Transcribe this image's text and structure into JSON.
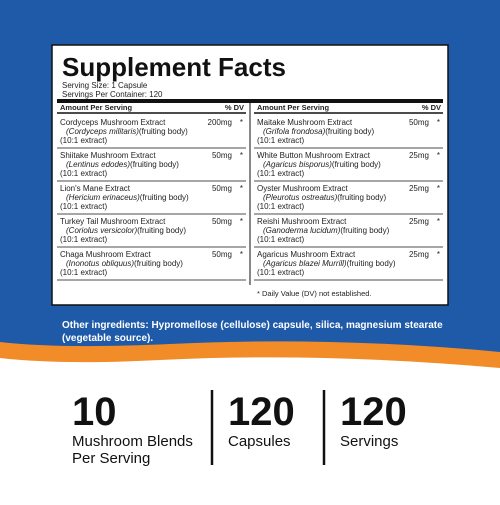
{
  "header": {
    "title": "Supplement Facts",
    "serving_size": "Serving Size: 1 Capsule",
    "servings_per_container": "Servings Per Container: 120"
  },
  "table": {
    "columns": [
      {
        "heading": "Amount Per Serving",
        "dv_heading": "% DV",
        "rows": [
          {
            "name": "Cordyceps Mushroom Extract",
            "latin": "(Cordyceps militaris)",
            "part": "(fruiting body)",
            "extract": "(10:1 extract)",
            "amount": "200mg",
            "dv": "*"
          },
          {
            "name": "Shiitake Mushroom Extract",
            "latin": "(Lentinus edodes)",
            "part": "(fruiting body)",
            "extract": "(10:1 extract)",
            "amount": "50mg",
            "dv": "*"
          },
          {
            "name": "Lion's Mane Extract",
            "latin": "(Hericium erinaceus)",
            "part": "(fruiting body)",
            "extract": "(10:1 extract)",
            "amount": "50mg",
            "dv": "*"
          },
          {
            "name": "Turkey Tail Mushroom Extract",
            "latin": "(Coriolus versicolor)",
            "part": "(fruiting body)",
            "extract": "(10:1 extract)",
            "amount": "50mg",
            "dv": "*"
          },
          {
            "name": "Chaga Mushroom Extract",
            "latin": "(Inonotus obliquus)",
            "part": "(fruiting body)",
            "extract": "(10:1 extract)",
            "amount": "50mg",
            "dv": "*"
          }
        ]
      },
      {
        "heading": "Amount Per Serving",
        "dv_heading": "% DV",
        "rows": [
          {
            "name": "Maitake Mushroom Extract",
            "latin": "(Grifola frondosa)",
            "part": "(fruiting body)",
            "extract": "(10:1 extract)",
            "amount": "50mg",
            "dv": "*"
          },
          {
            "name": "White Button Mushroom Extract",
            "latin": "(Agaricus bisporus)",
            "part": "(fruiting body)",
            "extract": "(10:1 extract)",
            "amount": "25mg",
            "dv": "*"
          },
          {
            "name": "Oyster Mushroom Extract",
            "latin": "(Pleurotus ostreatus)",
            "part": "(fruiting body)",
            "extract": "(10:1 extract)",
            "amount": "25mg",
            "dv": "*"
          },
          {
            "name": "Reishi Mushroom Extract",
            "latin": "(Ganoderma lucidum)",
            "part": "(fruiting body)",
            "extract": "(10:1 extract)",
            "amount": "25mg",
            "dv": "*"
          },
          {
            "name": "Agaricus Mushroom Extract",
            "latin": "(Agaricus blazei Murrill)",
            "part": "(fruiting body)",
            "extract": "(10:1 extract)",
            "amount": "25mg",
            "dv": "*"
          }
        ]
      }
    ],
    "footnote": "* Daily Value (DV) not established."
  },
  "other_ingredients": [
    "Other ingredients: Hypromellose (cellulose) capsule, silica, magnesium stearate",
    "(vegetable source)."
  ],
  "stats": [
    {
      "value": "10",
      "label": [
        "Mushroom Blends",
        "Per Serving"
      ]
    },
    {
      "value": "120",
      "label": [
        "Capsules"
      ]
    },
    {
      "value": "120",
      "label": [
        "Servings"
      ]
    }
  ]
}
